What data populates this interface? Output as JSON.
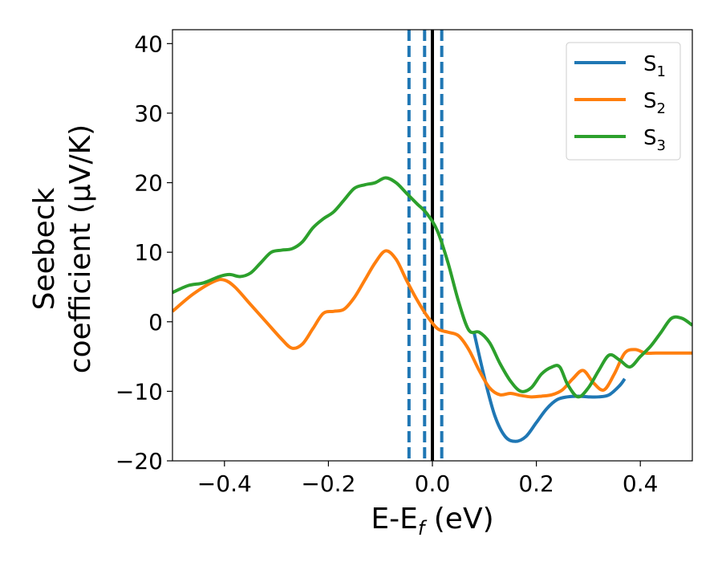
{
  "chart_data": {
    "type": "line",
    "xlabel": "E-E",
    "xlabel_sub": "f",
    "xlabel_unit": " (eV)",
    "ylabel_line1": "Seebeck",
    "ylabel_line2": "coefficient  (μV/K)",
    "xlim": [
      -0.5,
      0.5
    ],
    "ylim": [
      -20,
      42
    ],
    "xticks": [
      -0.4,
      -0.2,
      0.0,
      0.2,
      0.4
    ],
    "xtick_labels": [
      "−0.4",
      "−0.2",
      "0.0",
      "0.2",
      "0.4"
    ],
    "yticks": [
      -20,
      -10,
      0,
      10,
      20,
      30,
      40
    ],
    "ytick_labels": [
      "−20",
      "−10",
      "0",
      "10",
      "20",
      "30",
      "40"
    ],
    "grid": false,
    "legend_position": "top-right",
    "vlines": [
      {
        "x": 0.0,
        "color": "#000000",
        "style": "solid"
      },
      {
        "x": -0.045,
        "color": "#1f77b4",
        "style": "dashed"
      },
      {
        "x": -0.015,
        "color": "#1f77b4",
        "style": "dashed"
      },
      {
        "x": 0.018,
        "color": "#1f77b4",
        "style": "dashed"
      }
    ],
    "series": [
      {
        "name": "S",
        "sub": "1",
        "color": "#1f77b4",
        "x": [
          0.08,
          0.1,
          0.12,
          0.14,
          0.16,
          0.18,
          0.2,
          0.22,
          0.24,
          0.26,
          0.28,
          0.3,
          0.32,
          0.34,
          0.36,
          0.37
        ],
        "y": [
          -1.5,
          -8,
          -13.5,
          -16.5,
          -17.2,
          -16.5,
          -14.5,
          -12.5,
          -11.2,
          -10.8,
          -10.7,
          -10.8,
          -10.8,
          -10.5,
          -9.2,
          -8.2
        ]
      },
      {
        "name": "S",
        "sub": "2",
        "color": "#ff7f0e",
        "x": [
          -0.5,
          -0.46,
          -0.42,
          -0.4,
          -0.38,
          -0.35,
          -0.32,
          -0.29,
          -0.27,
          -0.25,
          -0.23,
          -0.21,
          -0.19,
          -0.17,
          -0.15,
          -0.13,
          -0.11,
          -0.09,
          -0.07,
          -0.05,
          -0.03,
          -0.01,
          0.01,
          0.03,
          0.05,
          0.07,
          0.09,
          0.11,
          0.13,
          0.15,
          0.17,
          0.19,
          0.21,
          0.23,
          0.25,
          0.27,
          0.29,
          0.31,
          0.33,
          0.35,
          0.37,
          0.39,
          0.41,
          0.43,
          0.45,
          0.47,
          0.49,
          0.5
        ],
        "y": [
          1.5,
          4,
          5.8,
          6,
          5,
          2.5,
          0,
          -2.5,
          -3.8,
          -3.2,
          -1,
          1.2,
          1.5,
          1.8,
          3.5,
          6,
          8.5,
          10.2,
          9,
          6,
          3.2,
          0.8,
          -1,
          -1.5,
          -2,
          -4,
          -7,
          -9.5,
          -10.5,
          -10.3,
          -10.6,
          -10.8,
          -10.7,
          -10.5,
          -9.8,
          -8.2,
          -7,
          -8.8,
          -9.8,
          -7.5,
          -4.5,
          -4,
          -4.5,
          -4.5,
          -4.5,
          -4.5,
          -4.5,
          -4.5
        ],
        "y_note": ""
      },
      {
        "name": "S",
        "sub": "3",
        "color": "#2ca02c",
        "x": [
          -0.5,
          -0.47,
          -0.44,
          -0.41,
          -0.39,
          -0.37,
          -0.35,
          -0.33,
          -0.31,
          -0.29,
          -0.27,
          -0.25,
          -0.23,
          -0.21,
          -0.19,
          -0.17,
          -0.15,
          -0.13,
          -0.11,
          -0.09,
          -0.07,
          -0.05,
          -0.03,
          -0.01,
          0.01,
          0.03,
          0.05,
          0.07,
          0.09,
          0.11,
          0.13,
          0.15,
          0.17,
          0.19,
          0.21,
          0.23,
          0.245,
          0.26,
          0.28,
          0.3,
          0.32,
          0.34,
          0.36,
          0.38,
          0.4,
          0.42,
          0.44,
          0.46,
          0.48,
          0.5
        ],
        "y": [
          4.2,
          5.2,
          5.6,
          6.5,
          6.8,
          6.5,
          7,
          8.5,
          10,
          10.3,
          10.5,
          11.5,
          13.5,
          14.8,
          15.8,
          17.5,
          19.2,
          19.7,
          20,
          20.7,
          20,
          18.5,
          17,
          15.5,
          13,
          8.5,
          3,
          -1.2,
          -1.5,
          -3,
          -6,
          -8.5,
          -10,
          -9.5,
          -7.5,
          -6.5,
          -6.5,
          -9,
          -10.8,
          -9.5,
          -7,
          -4.8,
          -5.5,
          -6.5,
          -5,
          -3.5,
          -1.5,
          0.5,
          0.5,
          -0.5
        ]
      }
    ]
  }
}
